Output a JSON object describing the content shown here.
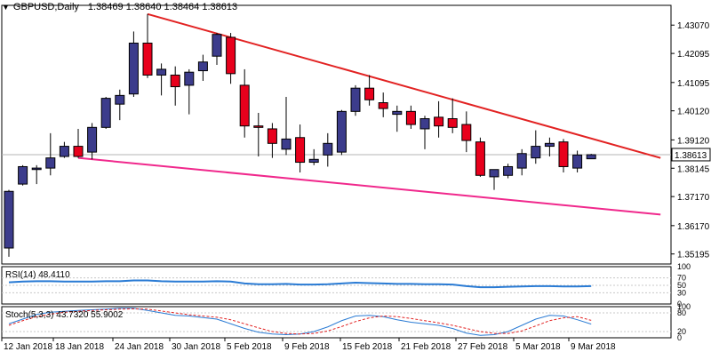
{
  "header": {
    "menu_icon": "triangle-down-icon",
    "symbol": "GBPUSD,Daily",
    "ohlc": "1.38469 1.38640 1.38464 1.38613"
  },
  "colors": {
    "bull": "#3c3c8c",
    "bear": "#e8001c",
    "upper_trend": "#e22222",
    "lower_trend": "#f0288c",
    "price_line": "#b4b4b4",
    "indicator": "#2a7bd4",
    "stoch_signal": "#e22222",
    "price_tag_bg": "#ffffff"
  },
  "chart_data": [
    {
      "type": "candlestick",
      "title": "GBPUSD,Daily",
      "ylim": [
        1.3485,
        1.4375
      ],
      "y_ticks": [
        "1.43070",
        "1.42095",
        "1.41095",
        "1.40120",
        "1.39120",
        "1.38145",
        "1.37170",
        "1.36170",
        "1.35195"
      ],
      "x_labels": [
        "12 Jan 2018",
        "18 Jan 2018",
        "24 Jan 2018",
        "30 Jan 2018",
        "5 Feb 2018",
        "9 Feb 2018",
        "15 Feb 2018",
        "21 Feb 2018",
        "27 Feb 2018",
        "5 Mar 2018",
        "9 Mar 2018"
      ],
      "current_price": "1.38613",
      "candles": [
        [
          1.354,
          1.374,
          1.351,
          1.3735
        ],
        [
          1.376,
          1.3825,
          1.3755,
          1.382
        ],
        [
          1.381,
          1.3825,
          1.376,
          1.3815
        ],
        [
          1.3815,
          1.3935,
          1.379,
          1.385
        ],
        [
          1.3855,
          1.3905,
          1.385,
          1.389
        ],
        [
          1.389,
          1.395,
          1.385,
          1.3855
        ],
        [
          1.387,
          1.397,
          1.3845,
          1.3955
        ],
        [
          1.3955,
          1.406,
          1.395,
          1.4055
        ],
        [
          1.4035,
          1.4085,
          1.398,
          1.4065
        ],
        [
          1.407,
          1.4285,
          1.406,
          1.4245
        ],
        [
          1.4245,
          1.4345,
          1.4125,
          1.4135
        ],
        [
          1.4135,
          1.4175,
          1.4065,
          1.4155
        ],
        [
          1.4135,
          1.4165,
          1.403,
          1.4095
        ],
        [
          1.41,
          1.4155,
          1.4,
          1.4145
        ],
        [
          1.415,
          1.4205,
          1.4115,
          1.418
        ],
        [
          1.42,
          1.428,
          1.417,
          1.4275
        ],
        [
          1.4265,
          1.428,
          1.4105,
          1.414
        ],
        [
          1.41,
          1.4155,
          1.392,
          1.396
        ],
        [
          1.396,
          1.4005,
          1.3855,
          1.3955
        ],
        [
          1.395,
          1.397,
          1.385,
          1.39
        ],
        [
          1.388,
          1.406,
          1.386,
          1.3915
        ],
        [
          1.392,
          1.3965,
          1.38,
          1.3835
        ],
        [
          1.3835,
          1.388,
          1.3825,
          1.3845
        ],
        [
          1.386,
          1.3935,
          1.382,
          1.39
        ],
        [
          1.387,
          1.4015,
          1.386,
          1.401
        ],
        [
          1.401,
          1.41,
          1.3995,
          1.409
        ],
        [
          1.409,
          1.4135,
          1.403,
          1.405
        ],
        [
          1.404,
          1.4075,
          1.399,
          1.402
        ],
        [
          1.4,
          1.403,
          1.394,
          1.401
        ],
        [
          1.401,
          1.403,
          1.395,
          1.3965
        ],
        [
          1.395,
          1.3995,
          1.388,
          1.3985
        ],
        [
          1.399,
          1.4045,
          1.392,
          1.396
        ],
        [
          1.3985,
          1.4055,
          1.3935,
          1.3955
        ],
        [
          1.3965,
          1.401,
          1.387,
          1.391
        ],
        [
          1.3905,
          1.392,
          1.3785,
          1.379
        ],
        [
          1.3785,
          1.381,
          1.374,
          1.381
        ],
        [
          1.379,
          1.383,
          1.378,
          1.382
        ],
        [
          1.3815,
          1.388,
          1.379,
          1.3865
        ],
        [
          1.385,
          1.3945,
          1.383,
          1.389
        ],
        [
          1.389,
          1.392,
          1.3855,
          1.39
        ],
        [
          1.3905,
          1.3915,
          1.38,
          1.382
        ],
        [
          1.3815,
          1.3875,
          1.38,
          1.386
        ],
        [
          1.3847,
          1.3864,
          1.3846,
          1.3861
        ]
      ],
      "trendlines": [
        {
          "role": "upper",
          "points": [
            [
              10,
              1.4345
            ],
            [
              47,
              1.385
            ]
          ]
        },
        {
          "role": "lower",
          "points": [
            [
              5,
              1.385
            ],
            [
              47,
              1.3655
            ]
          ]
        }
      ]
    },
    {
      "type": "line",
      "title": "RSI(14) 48.4110",
      "ylim": [
        0,
        100
      ],
      "y_ticks": [
        "100",
        "70",
        "50",
        "30",
        "0"
      ],
      "values": [
        58,
        60,
        61,
        61,
        60,
        60,
        60,
        61,
        61,
        63,
        63,
        61,
        60,
        60,
        60,
        61,
        60,
        55,
        53,
        53,
        54,
        52,
        52,
        53,
        55,
        57,
        56,
        55,
        54,
        54,
        53,
        53,
        52,
        48,
        45,
        45,
        46,
        47,
        48,
        48,
        47,
        47,
        48
      ]
    },
    {
      "type": "line",
      "title": "Stoch(5,3,3) 43.7320 55.9002",
      "ylim": [
        0,
        100
      ],
      "y_ticks": [
        "100",
        "80",
        "20",
        "0"
      ],
      "series": [
        {
          "values": [
            45,
            60,
            75,
            82,
            85,
            88,
            90,
            92,
            95,
            95,
            88,
            80,
            72,
            70,
            65,
            60,
            45,
            30,
            18,
            12,
            10,
            12,
            20,
            35,
            55,
            70,
            72,
            68,
            58,
            50,
            45,
            40,
            30,
            15,
            8,
            10,
            20,
            40,
            60,
            72,
            70,
            58,
            44
          ]
        },
        {
          "values": [
            40,
            55,
            68,
            76,
            82,
            85,
            88,
            90,
            92,
            93,
            92,
            86,
            80,
            74,
            70,
            66,
            58,
            45,
            32,
            20,
            14,
            12,
            14,
            22,
            36,
            52,
            64,
            70,
            68,
            62,
            55,
            48,
            40,
            30,
            20,
            14,
            14,
            22,
            38,
            55,
            64,
            68,
            56
          ]
        }
      ]
    }
  ]
}
